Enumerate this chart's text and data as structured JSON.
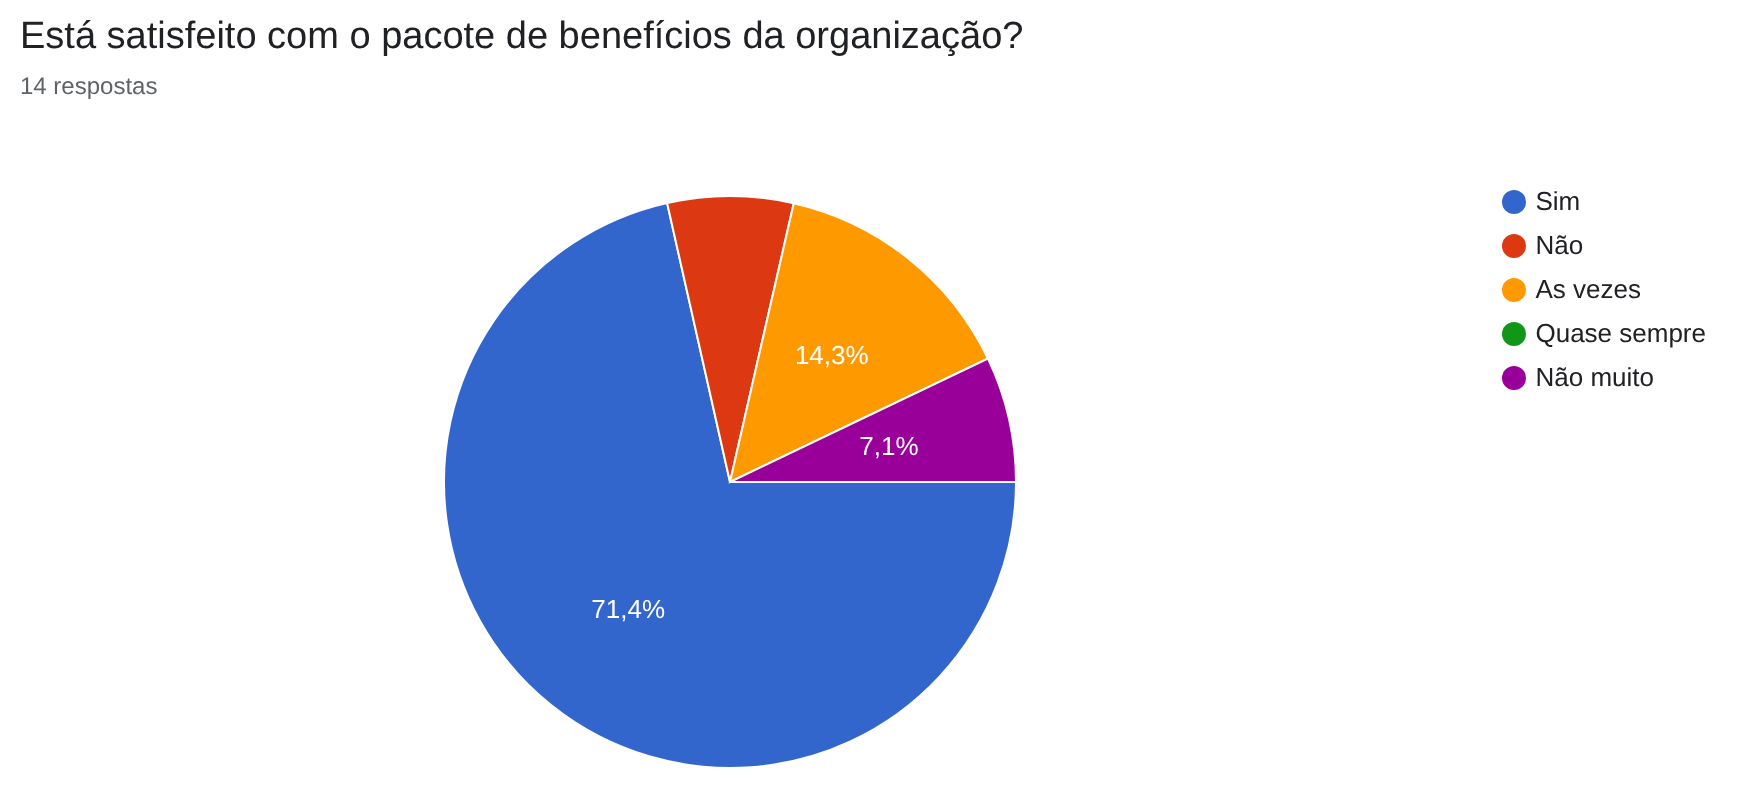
{
  "chart_data": {
    "type": "pie",
    "title": "Está satisfeito com o pacote de benefícios da organização?",
    "subtitle": "14 respostas",
    "categories": [
      "Sim",
      "Não",
      "As vezes",
      "Quase sempre",
      "Não muito"
    ],
    "values": [
      71.4,
      7.1,
      14.3,
      0,
      7.1
    ],
    "colors": [
      "#3366cc",
      "#dc3912",
      "#ff9900",
      "#109618",
      "#990099"
    ],
    "value_labels": [
      "71,4%",
      null,
      "14,3%",
      null,
      "7,1%"
    ],
    "legend": "right"
  }
}
